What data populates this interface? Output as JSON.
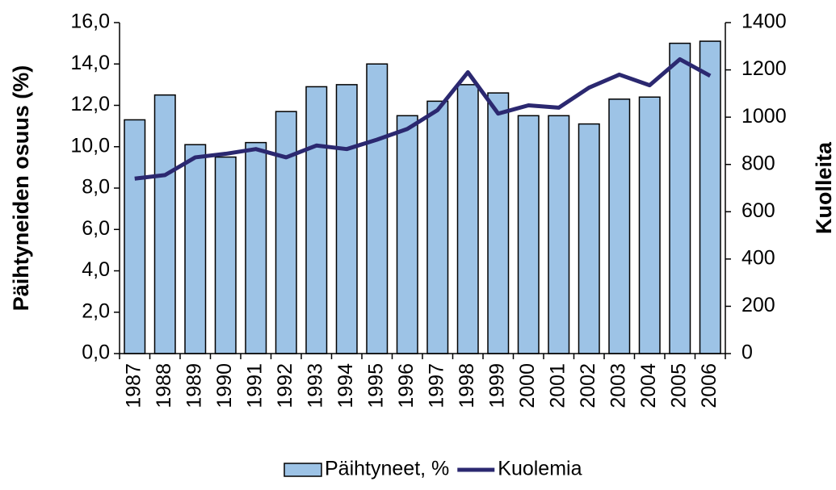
{
  "chart_data": {
    "type": "bar_line",
    "y_label": "Päihtyneiden osuus (%)",
    "y2_label": "Kuolleita",
    "categories": [
      "1987",
      "1988",
      "1989",
      "1990",
      "1991",
      "1992",
      "1993",
      "1994",
      "1995",
      "1996",
      "1997",
      "1998",
      "1999",
      "2000",
      "2001",
      "2002",
      "2003",
      "2004",
      "2005",
      "2006"
    ],
    "series": [
      {
        "name": "Päihtyneet, %",
        "type": "bar",
        "color": "#9dc3e6",
        "values": [
          11.3,
          12.5,
          10.1,
          9.5,
          10.2,
          11.7,
          12.9,
          13.0,
          14.0,
          11.5,
          12.2,
          13.0,
          12.6,
          11.5,
          11.5,
          11.1,
          12.3,
          12.4,
          15.0,
          15.1
        ]
      },
      {
        "name": "Kuolemia",
        "type": "line",
        "axis": "y2",
        "color": "#2b2870",
        "values": [
          740,
          755,
          830,
          845,
          865,
          830,
          880,
          865,
          905,
          950,
          1030,
          1190,
          1015,
          1050,
          1040,
          1125,
          1180,
          1135,
          1245,
          1175
        ]
      }
    ],
    "ylim": [
      0,
      16
    ],
    "yticks": [
      {
        "value": 0,
        "label": "0,0"
      },
      {
        "value": 2,
        "label": "2,0"
      },
      {
        "value": 4,
        "label": "4,0"
      },
      {
        "value": 6,
        "label": "6,0"
      },
      {
        "value": 8,
        "label": "8,0"
      },
      {
        "value": 10,
        "label": "10,0"
      },
      {
        "value": 12,
        "label": "12,0"
      },
      {
        "value": 14,
        "label": "14,0"
      },
      {
        "value": 16,
        "label": "16,0"
      }
    ],
    "y2lim": [
      0,
      1400
    ],
    "y2ticks": [
      0,
      200,
      400,
      600,
      800,
      1000,
      1200,
      1400
    ],
    "legend": "bottom"
  }
}
